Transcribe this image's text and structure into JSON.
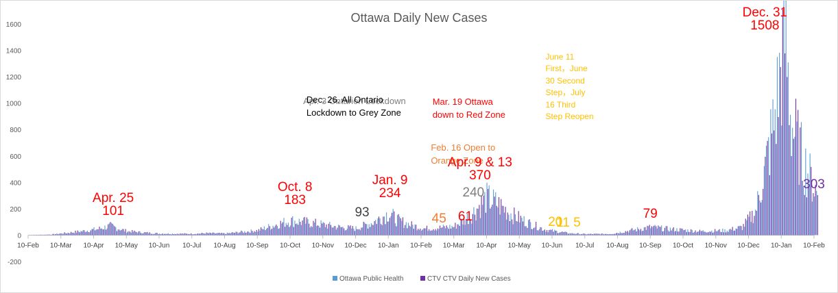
{
  "chart_data": {
    "type": "bar",
    "title": "Ottawa Daily New Cases",
    "ylim": [
      -200,
      1600
    ],
    "y_ticks": [
      -200,
      0,
      200,
      400,
      600,
      800,
      1000,
      1200,
      1400,
      1600
    ],
    "x_tick_labels": [
      "10-Feb",
      "10-Mar",
      "10-Apr",
      "10-May",
      "10-Jun",
      "10-Jul",
      "10-Aug",
      "10-Sep",
      "10-Oct",
      "10-Nov",
      "10-Dec",
      "10-Jan",
      "10-Feb",
      "10-Mar",
      "10-Apr",
      "10-May",
      "10-Jun",
      "10-Jul",
      "10-Aug",
      "10-Sep",
      "10-Oct",
      "10-Nov",
      "10-Dec",
      "10-Jan",
      "10-Feb"
    ],
    "x_ticks_month_index": [
      0,
      1,
      2,
      3,
      4,
      5,
      6,
      7,
      8,
      9,
      10,
      11,
      12,
      13,
      14,
      15,
      16,
      17,
      18,
      19,
      20,
      21,
      22,
      23,
      24
    ],
    "grid": "none",
    "legend_position": "bottom",
    "series": [
      {
        "name": "Ottawa Public Health",
        "color": "#5b9bd5"
      },
      {
        "name": "CTV CTV Daily New Cases",
        "color": "#7030a0"
      }
    ],
    "approx_level_by_month": [
      {
        "month": 0.0,
        "value": 0
      },
      {
        "month": 0.7,
        "value": 5
      },
      {
        "month": 1.3,
        "value": 20
      },
      {
        "month": 2.1,
        "value": 45
      },
      {
        "month": 2.5,
        "value": 70
      },
      {
        "month": 3.0,
        "value": 30
      },
      {
        "month": 3.5,
        "value": 20
      },
      {
        "month": 4.0,
        "value": 12
      },
      {
        "month": 5.0,
        "value": 10
      },
      {
        "month": 5.5,
        "value": 15
      },
      {
        "month": 6.0,
        "value": 12
      },
      {
        "month": 7.0,
        "value": 35
      },
      {
        "month": 7.5,
        "value": 75
      },
      {
        "month": 8.0,
        "value": 110
      },
      {
        "month": 8.7,
        "value": 90
      },
      {
        "month": 9.5,
        "value": 60
      },
      {
        "month": 10.0,
        "value": 50
      },
      {
        "month": 10.5,
        "value": 95
      },
      {
        "month": 11.0,
        "value": 165
      },
      {
        "month": 11.3,
        "value": 110
      },
      {
        "month": 11.7,
        "value": 75
      },
      {
        "month": 12.1,
        "value": 50
      },
      {
        "month": 12.5,
        "value": 55
      },
      {
        "month": 13.0,
        "value": 65
      },
      {
        "month": 13.5,
        "value": 150
      },
      {
        "month": 14.0,
        "value": 280
      },
      {
        "month": 14.3,
        "value": 240
      },
      {
        "month": 14.8,
        "value": 150
      },
      {
        "month": 15.3,
        "value": 90
      },
      {
        "month": 15.8,
        "value": 40
      },
      {
        "month": 16.5,
        "value": 15
      },
      {
        "month": 17.0,
        "value": 8
      },
      {
        "month": 17.8,
        "value": 10
      },
      {
        "month": 18.5,
        "value": 40
      },
      {
        "month": 19.0,
        "value": 60
      },
      {
        "month": 19.6,
        "value": 45
      },
      {
        "month": 20.5,
        "value": 30
      },
      {
        "month": 21.3,
        "value": 35
      },
      {
        "month": 21.8,
        "value": 60
      },
      {
        "month": 22.2,
        "value": 180
      },
      {
        "month": 22.5,
        "value": 500
      },
      {
        "month": 22.8,
        "value": 900
      },
      {
        "month": 23.0,
        "value": 1300
      },
      {
        "month": 23.1,
        "value": 1508
      },
      {
        "month": 23.3,
        "value": 850
      },
      {
        "month": 23.6,
        "value": 600
      },
      {
        "month": 23.9,
        "value": 420
      },
      {
        "month": 24.1,
        "value": 303
      }
    ],
    "annotations": [
      {
        "text": "Apr. 25\n101",
        "color": "#ff0000",
        "size": 19,
        "month": 2.6,
        "value": 101
      },
      {
        "text": "Oct. 8\n183",
        "color": "#ff0000",
        "size": 19,
        "month": 8.15,
        "value": 183
      },
      {
        "text": "93",
        "color": "#404040",
        "size": 19,
        "month": 10.2,
        "value": 93
      },
      {
        "text": "Jan. 9\n234",
        "color": "#ff0000",
        "size": 19,
        "month": 11.05,
        "value": 234
      },
      {
        "text": "Apr. 3 Ontarion Lockdown",
        "color": "#7f7f7f",
        "size": 13,
        "month": 8.4,
        "value": 930
      },
      {
        "text": "Dec. 26, All Ontario\nLockdown to Grey Zone",
        "color": "#000000",
        "size": 13,
        "month": 8.5,
        "value": 845
      },
      {
        "text": "Mar. 19 Ottawa\ndown to Red Zone",
        "color": "#ff0000",
        "size": 13,
        "month": 12.35,
        "value": 830
      },
      {
        "text": "Feb. 16 Open to\nOrange Zone",
        "color": "#ed7d31",
        "size": 13,
        "month": 12.3,
        "value": 480
      },
      {
        "text": "45",
        "color": "#ed7d31",
        "size": 19,
        "month": 12.55,
        "value": 45
      },
      {
        "text": "61",
        "color": "#ff0000",
        "size": 19,
        "month": 13.35,
        "value": 61
      },
      {
        "text": "240",
        "color": "#7f7f7f",
        "size": 19,
        "month": 13.6,
        "value": 240
      },
      {
        "text": "Apr. 9 & 13\n370",
        "color": "#ff0000",
        "size": 19,
        "month": 13.8,
        "value": 370
      },
      {
        "text": "June 11\nFirst，June\n30 Second\nStep，July\n16 Third\nStep Reopen",
        "color": "#ffc000",
        "size": 12,
        "month": 15.8,
        "value": 820
      },
      {
        "text": "20",
        "color": "#ffc000",
        "size": 19,
        "month": 16.1,
        "value": 20
      },
      {
        "text": "11 5",
        "color": "#ffc000",
        "size": 19,
        "month": 16.5,
        "value": 11
      },
      {
        "text": "79",
        "color": "#ff0000",
        "size": 19,
        "month": 19.0,
        "value": 79
      },
      {
        "text": "Dec. 31\n1508",
        "color": "#ff0000",
        "size": 19,
        "month": 22.5,
        "value": 1508
      },
      {
        "text": "303",
        "color": "#7030a0",
        "size": 19,
        "month": 24.0,
        "value": 303
      }
    ]
  }
}
